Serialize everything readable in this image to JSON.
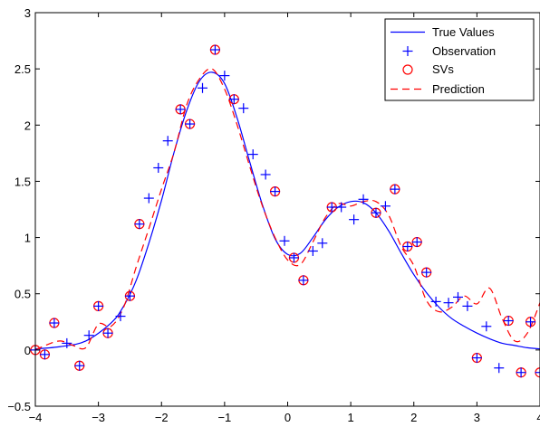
{
  "chart_data": {
    "type": "line",
    "title": "",
    "xlabel": "",
    "ylabel": "",
    "xlim": [
      -4,
      4
    ],
    "ylim": [
      -0.5,
      3
    ],
    "xticks": [
      -4,
      -3,
      -2,
      -1,
      0,
      1,
      2,
      3,
      4
    ],
    "yticks": [
      -0.5,
      0,
      0.5,
      1,
      1.5,
      2,
      2.5,
      3
    ],
    "xtick_labels": [
      "−4",
      "−3",
      "−2",
      "−1",
      "0",
      "1",
      "2",
      "3",
      "4"
    ],
    "ytick_labels": [
      "−0.5",
      "0",
      "0.5",
      "1",
      "1.5",
      "2",
      "2.5",
      "3"
    ],
    "grid": false,
    "legend_position": "top-right",
    "colors": {
      "true_values": "#0000ff",
      "observation": "#0000ff",
      "svs": "#ff0000",
      "prediction": "#ff0000"
    },
    "series": [
      {
        "name": "True Values",
        "style": "solid-line",
        "x": [
          -4.0,
          -3.6,
          -3.2,
          -2.8,
          -2.6,
          -2.4,
          -2.2,
          -2.0,
          -1.8,
          -1.6,
          -1.4,
          -1.2,
          -1.0,
          -0.8,
          -0.6,
          -0.4,
          -0.2,
          0.0,
          0.2,
          0.4,
          0.6,
          0.8,
          1.0,
          1.2,
          1.4,
          1.6,
          1.8,
          2.0,
          2.2,
          2.4,
          2.6,
          2.8,
          3.0,
          3.2,
          3.4,
          3.6,
          3.8,
          4.0
        ],
        "y": [
          0.01,
          0.03,
          0.08,
          0.24,
          0.39,
          0.62,
          0.95,
          1.33,
          1.76,
          2.13,
          2.39,
          2.47,
          2.37,
          2.06,
          1.67,
          1.29,
          0.99,
          0.85,
          0.86,
          1.0,
          1.16,
          1.27,
          1.32,
          1.31,
          1.22,
          1.06,
          0.86,
          0.67,
          0.51,
          0.38,
          0.28,
          0.21,
          0.15,
          0.1,
          0.06,
          0.04,
          0.02,
          0.01
        ]
      },
      {
        "name": "Observation",
        "style": "plus-marker",
        "x": [
          -4.0,
          -3.85,
          -3.7,
          -3.5,
          -3.3,
          -3.15,
          -3.0,
          -2.85,
          -2.65,
          -2.5,
          -2.35,
          -2.2,
          -2.05,
          -1.9,
          -1.7,
          -1.55,
          -1.35,
          -1.15,
          -1.0,
          -0.85,
          -0.7,
          -0.55,
          -0.35,
          -0.2,
          -0.05,
          0.1,
          0.25,
          0.4,
          0.55,
          0.7,
          0.85,
          1.05,
          1.2,
          1.4,
          1.55,
          1.7,
          1.9,
          2.05,
          2.2,
          2.35,
          2.55,
          2.7,
          2.85,
          3.0,
          3.15,
          3.35,
          3.5,
          3.7,
          3.85,
          4.0
        ],
        "y": [
          0.0,
          -0.04,
          0.24,
          0.06,
          -0.14,
          0.13,
          0.39,
          0.15,
          0.3,
          0.48,
          1.12,
          1.35,
          1.62,
          1.86,
          2.14,
          2.01,
          2.33,
          2.67,
          2.44,
          2.23,
          2.15,
          1.74,
          1.56,
          1.41,
          0.97,
          0.82,
          0.62,
          0.88,
          0.95,
          1.27,
          1.27,
          1.16,
          1.34,
          1.22,
          1.28,
          1.43,
          0.92,
          0.96,
          0.69,
          0.43,
          0.42,
          0.47,
          0.39,
          -0.07,
          0.21,
          -0.16,
          0.26,
          -0.2,
          0.25,
          -0.2
        ]
      },
      {
        "name": "SVs",
        "style": "circle-marker",
        "x": [
          -4.0,
          -3.85,
          -3.7,
          -3.3,
          -3.0,
          -2.85,
          -2.5,
          -2.35,
          -1.7,
          -1.55,
          -1.15,
          -0.85,
          -0.2,
          0.1,
          0.25,
          0.7,
          1.4,
          1.7,
          1.9,
          2.05,
          2.2,
          3.0,
          3.5,
          3.7,
          3.85,
          4.0
        ],
        "y": [
          0.0,
          -0.04,
          0.24,
          -0.14,
          0.39,
          0.15,
          0.48,
          1.12,
          2.14,
          2.01,
          2.67,
          2.23,
          1.41,
          0.82,
          0.62,
          1.27,
          1.22,
          1.43,
          0.92,
          0.96,
          0.69,
          -0.07,
          0.26,
          -0.2,
          0.25,
          -0.2
        ]
      },
      {
        "name": "Prediction",
        "style": "dashed-line",
        "x": [
          -4.0,
          -3.8,
          -3.6,
          -3.4,
          -3.2,
          -3.0,
          -2.8,
          -2.6,
          -2.4,
          -2.2,
          -2.0,
          -1.8,
          -1.6,
          -1.4,
          -1.2,
          -1.0,
          -0.8,
          -0.6,
          -0.4,
          -0.2,
          0.0,
          0.2,
          0.4,
          0.6,
          0.8,
          1.0,
          1.2,
          1.4,
          1.6,
          1.8,
          2.0,
          2.2,
          2.4,
          2.6,
          2.8,
          3.0,
          3.2,
          3.4,
          3.6,
          3.8,
          4.0
        ],
        "y": [
          0.0,
          0.05,
          0.08,
          0.04,
          0.02,
          0.23,
          0.21,
          0.38,
          0.74,
          1.08,
          1.43,
          1.76,
          2.18,
          2.41,
          2.5,
          2.32,
          2.0,
          1.63,
          1.28,
          1.0,
          0.8,
          0.76,
          0.96,
          1.18,
          1.3,
          1.28,
          1.32,
          1.32,
          1.2,
          0.92,
          0.75,
          0.44,
          0.34,
          0.38,
          0.48,
          0.41,
          0.55,
          0.28,
          0.08,
          0.15,
          0.42
        ]
      }
    ]
  }
}
